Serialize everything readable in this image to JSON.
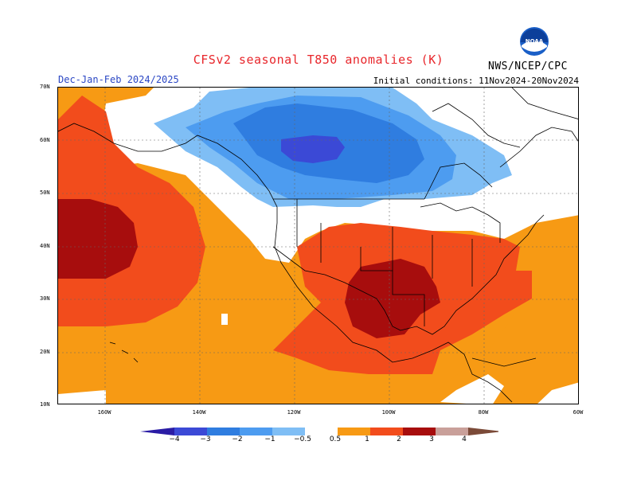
{
  "title": "CFSv2 seasonal T850 anomalies (K)",
  "season": "Dec-Jan-Feb 2024/2025",
  "initial_conditions": "Initial conditions: 11Nov2024-20Nov2024",
  "agency": "NWS/NCEP/CPC",
  "logo_text": "NOAA",
  "lat_ticks": [
    "70N",
    "60N",
    "50N",
    "40N",
    "30N",
    "20N",
    "10N"
  ],
  "lon_ticks": [
    "160W",
    "140W",
    "120W",
    "100W",
    "80W",
    "60W"
  ],
  "colorbar": {
    "labels": [
      "−4",
      "−3",
      "−2",
      "−1",
      "−0.5",
      "0.5",
      "1",
      "2",
      "3",
      "4"
    ],
    "colors": [
      "#2a1ca5",
      "#3b49d6",
      "#2f7de0",
      "#4d9cf0",
      "#7fbef5",
      "#ffffff",
      "#f79a14",
      "#f24c1c",
      "#a70d0d",
      "#c9a09a",
      "#7b4a38"
    ]
  },
  "chart_data": {
    "type": "heatmap",
    "variable": "T850 anomalies (K)",
    "region": {
      "lat_range": [
        10,
        70
      ],
      "lon_range": [
        "170W",
        "60W"
      ]
    },
    "levels": [
      -4,
      -3,
      -2,
      -1,
      -0.5,
      0.5,
      1,
      2,
      3,
      4
    ],
    "features": [
      {
        "area": "Northwest Canada / Alaska interior",
        "anomaly_range": [
          -2,
          -1
        ]
      },
      {
        "area": "Central Canada core",
        "anomaly_range": [
          -3,
          -2
        ]
      },
      {
        "area": "North Pacific near 40N 160W",
        "anomaly_range": [
          2,
          3
        ]
      },
      {
        "area": "Texas / Southern Plains",
        "anomaly_range": [
          2,
          3
        ]
      },
      {
        "area": "Southeast US / Mexico",
        "anomaly_range": [
          1,
          2
        ]
      },
      {
        "area": "Eastern Pacific / Atlantic subtropics",
        "anomaly_range": [
          0.5,
          1
        ]
      }
    ]
  }
}
